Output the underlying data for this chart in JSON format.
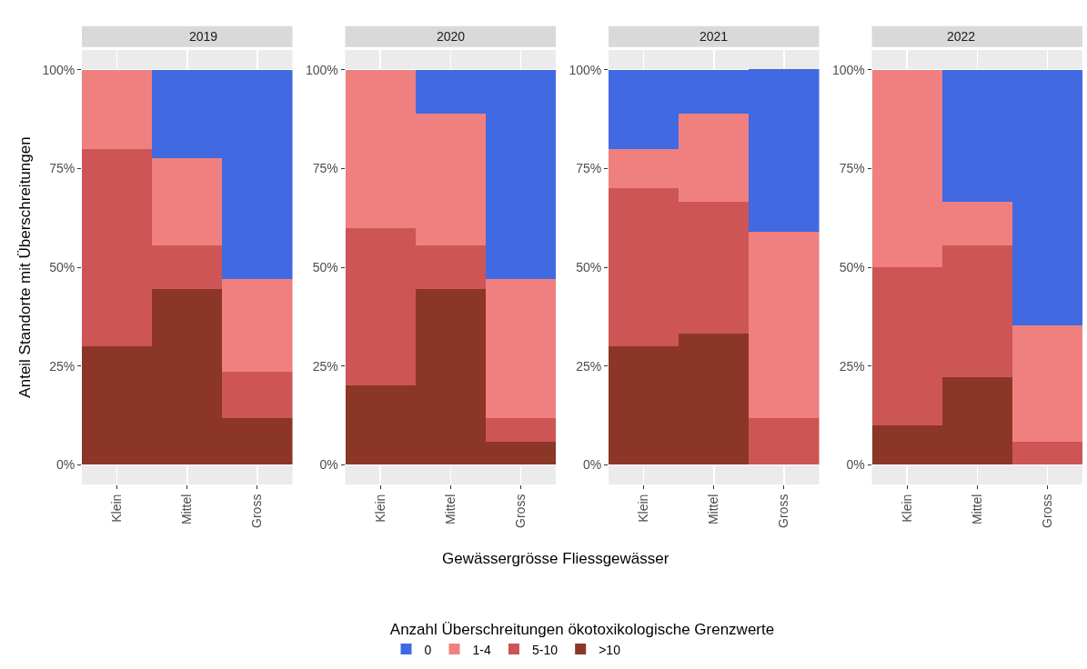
{
  "chart_data": [
    {
      "type": "bar",
      "title": "2019",
      "ylabel": "Anteil Standorte mit Überschreitungen",
      "legend_title": "Anzahl Überschreitungen ökotoxikologische Grenzwerte",
      "legend": "bottom",
      "stacked": true,
      "grid": true,
      "categories": [
        "Klein",
        "Mittel",
        "Gross"
      ],
      "ylim": [
        -5,
        105
      ],
      "yticks": [
        {
          "value": 0,
          "label": "0%"
        },
        {
          "value": 25,
          "label": "25%"
        },
        {
          "value": 50,
          "label": "50%"
        },
        {
          "value": 75,
          "label": "75%"
        },
        {
          "value": 100,
          "label": "100%"
        }
      ],
      "series": [
        {
          "name": ">10",
          "color": "#8b3626",
          "values": [
            30,
            44.4,
            11.8
          ]
        },
        {
          "name": "5-10",
          "color": "#cd5555",
          "values": [
            50,
            11.1,
            11.8
          ]
        },
        {
          "name": "1-4",
          "color": "#f08080",
          "values": [
            20,
            22.2,
            23.5
          ]
        },
        {
          "name": "0",
          "color": "#4169e1",
          "values": [
            0,
            22.2,
            52.9
          ]
        }
      ]
    },
    {
      "type": "bar",
      "title": "2020",
      "xlabel": "Gewässergrösse Fliessgewässer",
      "stacked": true,
      "grid": true,
      "categories": [
        "Klein",
        "Mittel",
        "Gross"
      ],
      "ylim": [
        -5,
        105
      ],
      "yticks": [
        {
          "value": 0,
          "label": "0%"
        },
        {
          "value": 25,
          "label": "25%"
        },
        {
          "value": 50,
          "label": "50%"
        },
        {
          "value": 75,
          "label": "75%"
        },
        {
          "value": 100,
          "label": "100%"
        }
      ],
      "series": [
        {
          "color": "#8b3626",
          "values": [
            20,
            44.4,
            5.9
          ]
        },
        {
          "color": "#cd5555",
          "values": [
            40,
            11.1,
            5.9
          ]
        },
        {
          "color": "#f08080",
          "values": [
            40,
            33.3,
            35.3
          ]
        },
        {
          "color": "#4169e1",
          "values": [
            0,
            11.1,
            52.9
          ]
        }
      ]
    },
    {
      "type": "bar",
      "title": "2021",
      "stacked": true,
      "grid": true,
      "categories": [
        "Klein",
        "Mittel",
        "Gross"
      ],
      "ylim": [
        -5,
        105
      ],
      "yticks": [
        {
          "value": 0,
          "label": "0%"
        },
        {
          "value": 25,
          "label": "25%"
        },
        {
          "value": 50,
          "label": "50%"
        },
        {
          "value": 75,
          "label": "75%"
        },
        {
          "value": 100,
          "label": "100%"
        }
      ],
      "series": [
        {
          "color": "#8b3626",
          "values": [
            30,
            33.3,
            0
          ]
        },
        {
          "color": "#cd5555",
          "values": [
            40,
            33.3,
            11.8
          ]
        },
        {
          "color": "#f08080",
          "values": [
            10,
            22.2,
            47.1
          ]
        },
        {
          "color": "#4169e1",
          "values": [
            20,
            11.1,
            41.2
          ]
        }
      ]
    },
    {
      "type": "bar",
      "title": "2022",
      "stacked": true,
      "grid": true,
      "categories": [
        "Klein",
        "Mittel",
        "Gross"
      ],
      "ylim": [
        -5,
        105
      ],
      "yticks": [
        {
          "value": 0,
          "label": "0%"
        },
        {
          "value": 25,
          "label": "25%"
        },
        {
          "value": 50,
          "label": "50%"
        },
        {
          "value": 75,
          "label": "75%"
        },
        {
          "value": 100,
          "label": "100%"
        }
      ],
      "series": [
        {
          "color": "#8b3626",
          "values": [
            10,
            22.2,
            0
          ]
        },
        {
          "color": "#cd5555",
          "values": [
            40,
            33.3,
            5.9
          ]
        },
        {
          "color": "#f08080",
          "values": [
            50,
            11.1,
            29.4
          ]
        },
        {
          "color": "#4169e1",
          "values": [
            0,
            33.3,
            64.7
          ]
        }
      ]
    }
  ]
}
